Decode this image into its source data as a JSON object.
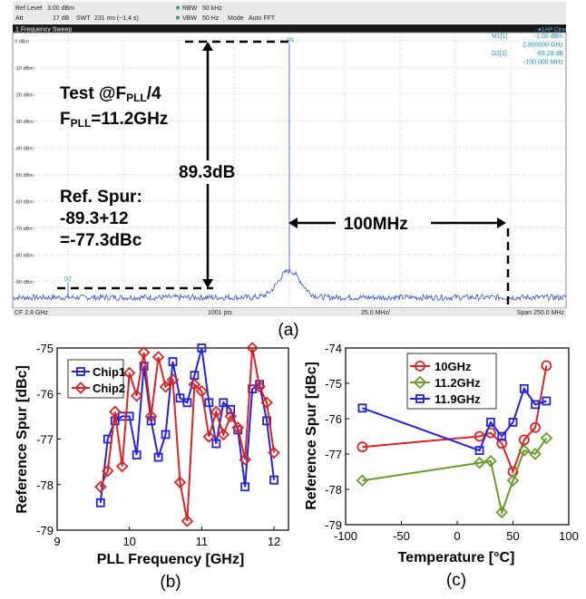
{
  "analyzer": {
    "header": {
      "ref_level_label": "Ref Level",
      "ref_level_value": "3.00 dBm",
      "att_label": "Att",
      "att_value": "17 dB",
      "swt_label": "SWT",
      "swt_value": "231 ms (~1.4 s)",
      "rbw_label": "RBW",
      "rbw_value": "50 kHz",
      "vbw_label": "VBW",
      "vbw_value": "50 Hz",
      "mode_label": "Mode",
      "mode_value": "Auto FFT"
    },
    "title_bar": "1 Frequency Sweep",
    "trace_label": "●1AP Clrw",
    "markers": [
      {
        "label": "M1[1]",
        "value": "-1.00 dBm"
      },
      {
        "label": "",
        "value": "2.800000 GHz"
      },
      {
        "label": "D2[1]",
        "value": "-89.29 dB"
      },
      {
        "label": "",
        "value": "-100.000 MHz"
      }
    ],
    "marker_tags": [
      "M1",
      "D2"
    ],
    "footer": {
      "left": "CF 2.8 GHz",
      "pts": "1001 pts",
      "per_div": "25.0 MHz/",
      "right": "Span 250.0 MHz"
    },
    "annotations": {
      "test_prefix": "Test @F",
      "test_sub": "PLL",
      "test_suffix": "/4",
      "fpll_prefix": "F",
      "fpll_sub": "PLL",
      "fpll_suffix": "=11.2GHz",
      "delta_db": "89.3dB",
      "ref_spur_1": "Ref. Spur:",
      "ref_spur_2": "-89.3+12",
      "ref_spur_3": "=-77.3dBc",
      "offset": "100MHz"
    },
    "colors": {
      "trace": "#2d50d6",
      "marker_text": "#1f8ad6",
      "title_bar": "#1a1a1a"
    }
  },
  "panel_labels": [
    "(a)",
    "(b)",
    "(c)"
  ],
  "chart_data": [
    {
      "id": "a",
      "type": "line",
      "xlabel": "",
      "ylabel": "",
      "x_range_mhz": [
        2675,
        2925
      ],
      "ylim": [
        -100,
        3
      ],
      "yticks": [
        0,
        -10,
        -20,
        -30,
        -40,
        -50,
        -60,
        -70,
        -80,
        -90
      ],
      "ytick_labels": [
        "0 dBm",
        "-10 dBm",
        "-20 dBm",
        "-30 dBm",
        "-40 dBm",
        "-50 dBm",
        "-60 dBm",
        "-70 dBm",
        "-80 dBm",
        "-90 dBm"
      ],
      "grid": true,
      "carrier": {
        "x_mhz": 2800,
        "y_dbm": -1.0
      },
      "spur": {
        "x_mhz": 2700,
        "y_dbm": -90.3
      },
      "noise_floor_dbm": -96,
      "pedestal_dbm": -86
    },
    {
      "id": "b",
      "type": "line",
      "xlabel": "PLL Frequency [GHz]",
      "ylabel": "Reference Spur [dBc]",
      "xlim": [
        9,
        12.2
      ],
      "ylim": [
        -79,
        -75
      ],
      "xticks": [
        9,
        10,
        11,
        12
      ],
      "yticks": [
        -75,
        -76,
        -77,
        -78,
        -79
      ],
      "legend": "top-left",
      "grid": false,
      "series": [
        {
          "name": "Chip1",
          "color": "#2222dd",
          "marker": "square",
          "x": [
            9.6,
            9.7,
            9.8,
            9.9,
            10.0,
            10.1,
            10.2,
            10.3,
            10.4,
            10.5,
            10.6,
            10.7,
            10.8,
            10.9,
            11.0,
            11.1,
            11.2,
            11.3,
            11.4,
            11.5,
            11.6,
            11.7,
            11.8,
            11.9,
            12.0
          ],
          "y": [
            -78.4,
            -77.0,
            -76.6,
            -76.5,
            -76.5,
            -77.35,
            -75.4,
            -76.6,
            -77.4,
            -76.9,
            -75.3,
            -76.1,
            -76.2,
            -75.6,
            -75.0,
            -76.2,
            -77.1,
            -76.2,
            -76.35,
            -76.8,
            -78.05,
            -75.9,
            -75.8,
            -76.6,
            -77.9
          ]
        },
        {
          "name": "Chip2",
          "color": "#dd2222",
          "marker": "diamond",
          "x": [
            9.6,
            9.7,
            9.8,
            9.9,
            10.0,
            10.1,
            10.2,
            10.3,
            10.4,
            10.5,
            10.6,
            10.7,
            10.8,
            10.9,
            11.0,
            11.1,
            11.2,
            11.3,
            11.4,
            11.5,
            11.6,
            11.7,
            11.8,
            11.9,
            12.0
          ],
          "y": [
            -78.05,
            -77.7,
            -76.4,
            -77.6,
            -75.55,
            -76.05,
            -75.1,
            -76.5,
            -75.2,
            -75.85,
            -75.7,
            -77.95,
            -78.8,
            -75.8,
            -75.95,
            -76.95,
            -76.4,
            -76.9,
            -76.5,
            -76.75,
            -77.45,
            -75.0,
            -75.85,
            -76.2,
            -77.3
          ]
        }
      ]
    },
    {
      "id": "c",
      "type": "line",
      "xlabel": "Temperature [°C]",
      "ylabel": "Reference Spur [dBc]",
      "xlim": [
        -100,
        100
      ],
      "ylim": [
        -79,
        -74
      ],
      "xticks": [
        -100,
        -50,
        0,
        50,
        100
      ],
      "yticks": [
        -74,
        -75,
        -76,
        -77,
        -78,
        -79
      ],
      "legend": "top-center",
      "grid": false,
      "series": [
        {
          "name": "10GHz",
          "color": "#dd2222",
          "marker": "circle",
          "x": [
            -85,
            20,
            30,
            40,
            50,
            60,
            70,
            80
          ],
          "y": [
            -76.8,
            -76.5,
            -76.4,
            -76.7,
            -77.5,
            -76.6,
            -76.25,
            -74.5
          ]
        },
        {
          "name": "11.2GHz",
          "color": "#6a9a2a",
          "marker": "diamond",
          "x": [
            -85,
            20,
            30,
            40,
            50,
            60,
            70,
            80
          ],
          "y": [
            -77.75,
            -77.25,
            -77.2,
            -78.65,
            -77.75,
            -76.9,
            -77.0,
            -76.55
          ]
        },
        {
          "name": "11.9GHz",
          "color": "#2222dd",
          "marker": "square",
          "x": [
            -85,
            20,
            30,
            40,
            50,
            60,
            70,
            80
          ],
          "y": [
            -75.7,
            -76.9,
            -76.1,
            -76.5,
            -76.1,
            -75.15,
            -75.6,
            -75.5
          ]
        }
      ]
    }
  ]
}
